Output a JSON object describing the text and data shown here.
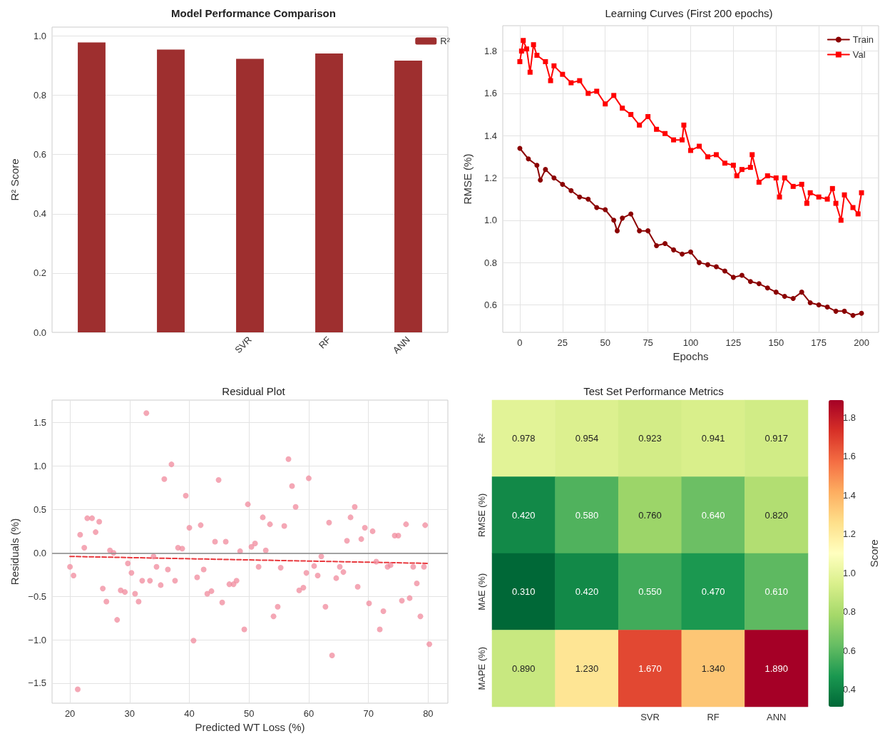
{
  "chart_data": [
    {
      "type": "bar",
      "title": "Model Performance Comparison",
      "ylabel": "R² Score",
      "categories": [
        null,
        null,
        "SVR",
        "RF",
        "ANN"
      ],
      "series": [
        {
          "name": "R²",
          "color": "#9e2f2f",
          "values": [
            0.978,
            0.954,
            0.923,
            0.941,
            0.917
          ]
        }
      ],
      "ylim": [
        0,
        1.03
      ],
      "yticks": [
        {
          "value": 0,
          "label": "0.0"
        },
        0.2,
        0.4,
        0.6,
        0.8,
        {
          "value": 1,
          "label": "1.0"
        }
      ],
      "grid": true,
      "legend": "top right"
    },
    {
      "type": "line",
      "title": "Learning Curves (First 200 epochs)",
      "xlabel": "Epochs",
      "ylabel": "RMSE (%)",
      "series": [
        {
          "name": "Train",
          "color": "#8b0000",
          "marker": "circle",
          "x": [
            0,
            5,
            10,
            12,
            15,
            20,
            25,
            30,
            35,
            40,
            45,
            50,
            55,
            57,
            60,
            65,
            70,
            75,
            80,
            85,
            90,
            95,
            100,
            105,
            110,
            115,
            120,
            125,
            130,
            135,
            140,
            145,
            150,
            155,
            160,
            165,
            170,
            175,
            180,
            185,
            190,
            195,
            200
          ],
          "values": [
            1.34,
            1.29,
            1.26,
            1.19,
            1.24,
            1.2,
            1.17,
            1.14,
            1.11,
            1.1,
            1.06,
            1.05,
            1.0,
            0.95,
            1.01,
            1.03,
            0.95,
            0.95,
            0.88,
            0.89,
            0.86,
            0.84,
            0.85,
            0.8,
            0.79,
            0.78,
            0.76,
            0.73,
            0.74,
            0.71,
            0.7,
            0.68,
            0.66,
            0.64,
            0.63,
            0.66,
            0.61,
            0.6,
            0.59,
            0.57,
            0.57,
            0.55,
            0.56
          ]
        },
        {
          "name": "Val",
          "color": "#ff0000",
          "marker": "square",
          "x": [
            0,
            1,
            2,
            4,
            6,
            8,
            10,
            15,
            18,
            20,
            25,
            30,
            35,
            40,
            45,
            50,
            55,
            60,
            65,
            70,
            75,
            80,
            85,
            90,
            95,
            96,
            100,
            105,
            110,
            115,
            120,
            125,
            127,
            130,
            135,
            136,
            140,
            145,
            150,
            152,
            155,
            160,
            165,
            168,
            170,
            175,
            180,
            183,
            185,
            188,
            190,
            195,
            198,
            200
          ],
          "values": [
            1.75,
            1.8,
            1.85,
            1.81,
            1.7,
            1.83,
            1.78,
            1.75,
            1.66,
            1.73,
            1.69,
            1.65,
            1.66,
            1.6,
            1.61,
            1.55,
            1.59,
            1.53,
            1.5,
            1.45,
            1.49,
            1.43,
            1.41,
            1.38,
            1.38,
            1.45,
            1.33,
            1.35,
            1.3,
            1.31,
            1.27,
            1.26,
            1.21,
            1.24,
            1.25,
            1.31,
            1.18,
            1.21,
            1.2,
            1.11,
            1.2,
            1.16,
            1.17,
            1.08,
            1.13,
            1.11,
            1.1,
            1.15,
            1.08,
            1.0,
            1.12,
            1.06,
            1.03,
            1.13
          ]
        }
      ],
      "xlim": [
        -10,
        210
      ],
      "xticks": [
        0,
        25,
        50,
        75,
        100,
        125,
        150,
        175,
        200
      ],
      "ylim": [
        0.47,
        1.92
      ],
      "yticks": [
        0.6,
        0.8,
        {
          "value": 1,
          "label": "1.0"
        },
        1.2,
        1.4,
        1.6,
        1.8
      ],
      "grid": true,
      "legend": "top right",
      "line_style": "solid"
    },
    {
      "type": "scatter",
      "title": "Residual Plot",
      "xlabel": "Predicted WT Loss (%)",
      "ylabel": "Residuals (%)",
      "series": [
        {
          "type": "scatter",
          "color": "#f08a9c",
          "marker": "circle",
          "x": [
            20.0,
            20.6,
            21.3,
            21.7,
            22.4,
            22.9,
            23.7,
            24.3,
            24.9,
            25.5,
            26.1,
            26.7,
            27.3,
            27.9,
            28.5,
            29.2,
            29.7,
            30.3,
            30.9,
            31.5,
            32.1,
            32.8,
            33.4,
            34.0,
            34.5,
            35.2,
            35.8,
            36.4,
            37.0,
            37.6,
            38.1,
            38.8,
            39.4,
            40.0,
            40.7,
            41.3,
            41.9,
            42.4,
            43.0,
            43.7,
            44.3,
            44.9,
            45.5,
            46.1,
            46.7,
            47.4,
            47.9,
            48.5,
            49.2,
            49.8,
            50.4,
            51.0,
            51.6,
            52.3,
            52.8,
            53.5,
            54.1,
            54.8,
            55.3,
            55.9,
            56.6,
            57.2,
            57.8,
            58.4,
            59.1,
            59.6,
            60.0,
            60.9,
            61.5,
            62.1,
            62.8,
            63.4,
            63.9,
            64.6,
            65.2,
            65.8,
            66.4,
            67.0,
            67.7,
            68.2,
            68.8,
            69.4,
            70.1,
            70.7,
            71.3,
            71.9,
            72.5,
            73.2,
            73.7,
            74.4,
            75.0,
            75.6,
            76.3,
            76.9,
            77.5,
            78.1,
            78.7,
            79.3,
            79.5,
            80.2
          ],
          "values": [
            -0.16,
            -0.26,
            -1.57,
            0.21,
            0.06,
            0.4,
            0.4,
            0.24,
            0.36,
            -0.41,
            -0.56,
            0.03,
            0.0,
            -0.77,
            -0.43,
            -0.45,
            -0.12,
            -0.23,
            -0.47,
            -0.56,
            -0.32,
            1.61,
            -0.32,
            -0.04,
            -0.16,
            -0.37,
            0.85,
            -0.19,
            1.02,
            -0.32,
            0.06,
            0.05,
            0.66,
            0.29,
            -1.01,
            -0.28,
            0.32,
            -0.19,
            -0.47,
            -0.44,
            0.13,
            0.84,
            -0.57,
            0.13,
            -0.36,
            -0.36,
            -0.32,
            0.02,
            -0.88,
            0.56,
            0.07,
            0.11,
            -0.16,
            0.41,
            0.03,
            0.33,
            -0.73,
            -0.62,
            -0.17,
            0.31,
            1.08,
            0.77,
            0.53,
            -0.43,
            -0.4,
            -0.23,
            0.86,
            -0.15,
            -0.26,
            -0.04,
            -0.62,
            0.35,
            -1.18,
            -0.29,
            -0.16,
            -0.22,
            0.14,
            0.41,
            0.53,
            -0.39,
            0.16,
            0.29,
            -0.58,
            0.25,
            -0.1,
            -0.88,
            -0.67,
            -0.16,
            -0.14,
            0.2,
            0.2,
            -0.55,
            0.33,
            -0.52,
            -0.16,
            -0.35,
            -0.73,
            -0.16,
            0.32,
            -1.05
          ]
        },
        {
          "type": "line",
          "color": "#e8383d",
          "marker": "none",
          "line_style": "dashed",
          "x": [
            20,
            80
          ],
          "values": [
            -0.04,
            -0.12
          ]
        }
      ],
      "ref_lines": [
        {
          "axis": "y",
          "value": 0,
          "color": "#888888",
          "line_style": "solid"
        }
      ],
      "xlim": [
        17,
        83.3
      ],
      "xticks": [
        20,
        30,
        40,
        50,
        60,
        70,
        80
      ],
      "ylim": [
        -1.73,
        1.76
      ],
      "yticks": [
        {
          "value": -1.5,
          "label": "−1.5"
        },
        {
          "value": -1,
          "label": "−1.0"
        },
        {
          "value": -0.5,
          "label": "−0.5"
        },
        {
          "value": 0,
          "label": "0.0"
        },
        0.5,
        {
          "value": 1,
          "label": "1.0"
        },
        1.5
      ],
      "grid": true
    },
    {
      "type": "heatmap",
      "title": "Test Set Performance Metrics",
      "clabel": "Score",
      "categories": [
        null,
        null,
        "SVR",
        "RF",
        "ANN"
      ],
      "y_categories": [
        "R²",
        "RMSE (%)",
        "MAE (%)",
        "MAPE (%)"
      ],
      "cells": [
        [
          0.978,
          0.954,
          0.923,
          0.941,
          0.917
        ],
        [
          0.42,
          0.58,
          0.76,
          0.64,
          0.82
        ],
        [
          0.31,
          0.42,
          0.55,
          0.47,
          0.61
        ],
        [
          0.89,
          1.23,
          1.67,
          1.34,
          1.89
        ]
      ],
      "cell_labels": [
        [
          "0.978",
          "0.954",
          "0.923",
          "0.941",
          "0.917"
        ],
        [
          "0.420",
          "0.580",
          "0.760",
          "0.640",
          "0.820"
        ],
        [
          "0.310",
          "0.420",
          "0.550",
          "0.470",
          "0.610"
        ],
        [
          "0.890",
          "1.230",
          "1.670",
          "1.340",
          "1.890"
        ]
      ],
      "clim": [
        0.31,
        1.89
      ],
      "cticks": [
        0.4,
        0.6,
        0.8,
        {
          "value": 1,
          "label": "1.0"
        },
        1.2,
        1.4,
        1.6,
        1.8
      ]
    }
  ]
}
